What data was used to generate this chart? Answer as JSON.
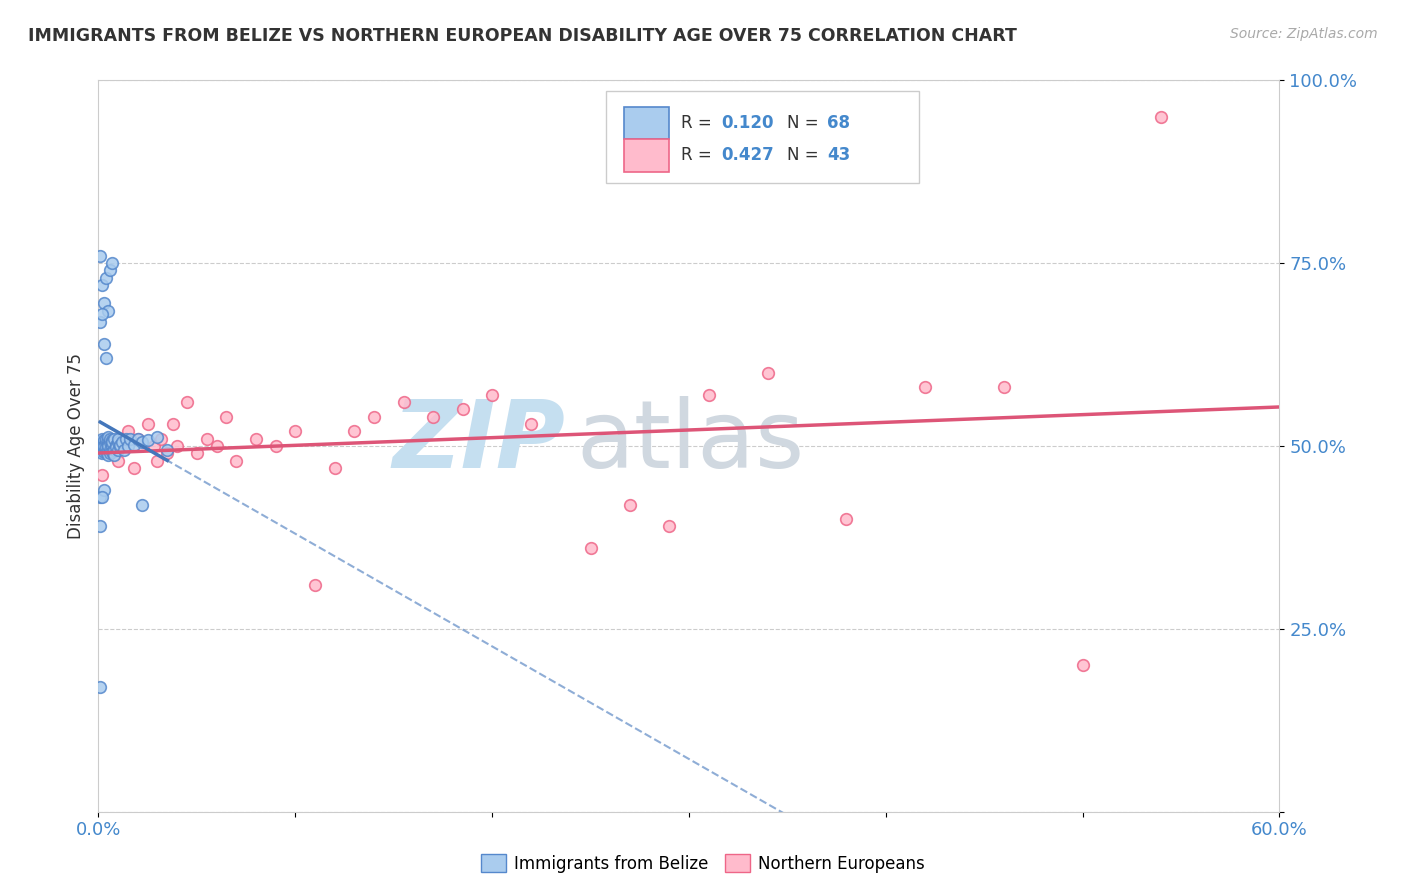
{
  "title": "IMMIGRANTS FROM BELIZE VS NORTHERN EUROPEAN DISABILITY AGE OVER 75 CORRELATION CHART",
  "source": "Source: ZipAtlas.com",
  "ylabel": "Disability Age Over 75",
  "x_min": 0.0,
  "x_max": 0.6,
  "y_min": 0.0,
  "y_max": 1.0,
  "belize_R": "0.120",
  "belize_N": "68",
  "northern_R": "0.427",
  "northern_N": "43",
  "belize_face_color": "#aaccee",
  "belize_edge_color": "#5588cc",
  "northern_face_color": "#ffbbcc",
  "northern_edge_color": "#ee6688",
  "belize_trend_color": "#4477bb",
  "northern_trend_color": "#dd5577",
  "legend_text_color": "#4488cc",
  "tick_color": "#4488cc",
  "belize_x": [
    0.001,
    0.001,
    0.002,
    0.002,
    0.002,
    0.002,
    0.002,
    0.003,
    0.003,
    0.003,
    0.003,
    0.003,
    0.004,
    0.004,
    0.004,
    0.004,
    0.005,
    0.005,
    0.005,
    0.005,
    0.005,
    0.005,
    0.006,
    0.006,
    0.006,
    0.006,
    0.007,
    0.007,
    0.007,
    0.007,
    0.008,
    0.008,
    0.008,
    0.009,
    0.009,
    0.01,
    0.01,
    0.01,
    0.011,
    0.011,
    0.012,
    0.013,
    0.014,
    0.015,
    0.016,
    0.018,
    0.02,
    0.022,
    0.025,
    0.03,
    0.035,
    0.001,
    0.002,
    0.003,
    0.004,
    0.005,
    0.006,
    0.007,
    0.001,
    0.002,
    0.003,
    0.004,
    0.001,
    0.003,
    0.002,
    0.001,
    0.001,
    0.022
  ],
  "belize_y": [
    0.5,
    0.495,
    0.505,
    0.51,
    0.49,
    0.498,
    0.502,
    0.505,
    0.495,
    0.508,
    0.492,
    0.5,
    0.505,
    0.492,
    0.51,
    0.498,
    0.502,
    0.508,
    0.495,
    0.512,
    0.488,
    0.5,
    0.505,
    0.495,
    0.51,
    0.49,
    0.5,
    0.508,
    0.492,
    0.505,
    0.495,
    0.51,
    0.488,
    0.502,
    0.498,
    0.505,
    0.495,
    0.51,
    0.498,
    0.502,
    0.505,
    0.495,
    0.51,
    0.5,
    0.51,
    0.502,
    0.51,
    0.505,
    0.508,
    0.512,
    0.495,
    0.76,
    0.72,
    0.695,
    0.73,
    0.685,
    0.74,
    0.75,
    0.67,
    0.68,
    0.64,
    0.62,
    0.43,
    0.44,
    0.43,
    0.39,
    0.17,
    0.42
  ],
  "northern_x": [
    0.002,
    0.004,
    0.006,
    0.01,
    0.012,
    0.015,
    0.018,
    0.02,
    0.025,
    0.028,
    0.03,
    0.032,
    0.035,
    0.038,
    0.04,
    0.045,
    0.05,
    0.055,
    0.06,
    0.065,
    0.07,
    0.08,
    0.09,
    0.1,
    0.11,
    0.12,
    0.13,
    0.14,
    0.155,
    0.17,
    0.185,
    0.2,
    0.22,
    0.25,
    0.27,
    0.29,
    0.31,
    0.34,
    0.38,
    0.42,
    0.46,
    0.5,
    0.54
  ],
  "northern_y": [
    0.46,
    0.51,
    0.49,
    0.48,
    0.5,
    0.52,
    0.47,
    0.51,
    0.53,
    0.5,
    0.48,
    0.51,
    0.49,
    0.53,
    0.5,
    0.56,
    0.49,
    0.51,
    0.5,
    0.54,
    0.48,
    0.51,
    0.5,
    0.52,
    0.31,
    0.47,
    0.52,
    0.54,
    0.56,
    0.54,
    0.55,
    0.57,
    0.53,
    0.36,
    0.42,
    0.39,
    0.57,
    0.6,
    0.4,
    0.58,
    0.58,
    0.2,
    0.95
  ]
}
